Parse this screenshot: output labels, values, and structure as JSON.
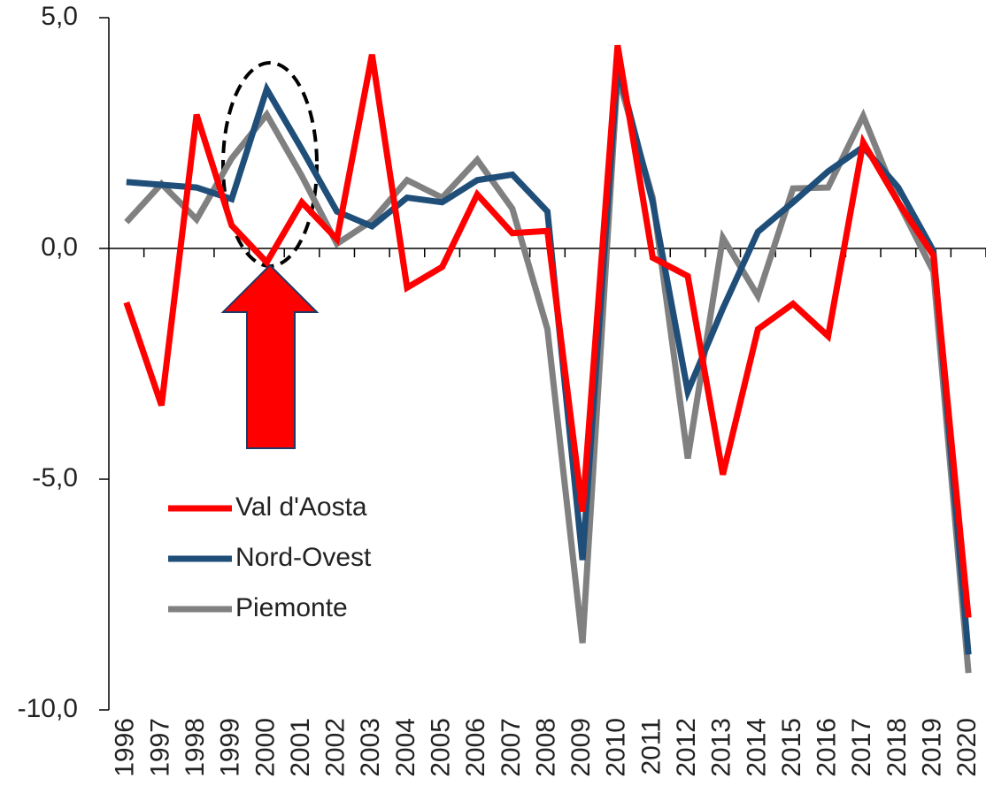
{
  "chart_data": {
    "type": "line",
    "categories": [
      "1996",
      "1997",
      "1998",
      "1999",
      "2000",
      "2001",
      "2002",
      "2003",
      "2004",
      "2005",
      "2006",
      "2007",
      "2008",
      "2009",
      "2010",
      "2011",
      "2012",
      "2013",
      "2014",
      "2015",
      "2016",
      "2017",
      "2018",
      "2019",
      "2020"
    ],
    "series": [
      {
        "name": "Val d'Aosta",
        "color": "#ff0000",
        "values": [
          -1.17,
          -3.4,
          2.9,
          0.5,
          -0.3,
          1.0,
          0.2,
          4.2,
          -0.85,
          -0.4,
          1.17,
          0.33,
          0.38,
          -5.7,
          4.4,
          -0.2,
          -0.6,
          -4.9,
          -1.75,
          -1.2,
          -1.9,
          2.3,
          1.0,
          -0.15,
          -8.0
        ]
      },
      {
        "name": "Nord-Ovest",
        "color": "#1f4e79",
        "values": [
          1.44,
          1.38,
          1.32,
          1.07,
          3.45,
          2.15,
          0.8,
          0.48,
          1.1,
          1.0,
          1.48,
          1.6,
          0.8,
          -6.75,
          3.95,
          1.0,
          -3.1,
          -1.3,
          0.36,
          1.0,
          1.67,
          2.2,
          1.32,
          -0.05,
          -8.8
        ]
      },
      {
        "name": "Piemonte",
        "color": "#808080",
        "values": [
          0.57,
          1.4,
          0.63,
          1.95,
          2.9,
          1.57,
          0.1,
          0.6,
          1.48,
          1.1,
          1.92,
          0.86,
          -1.75,
          -8.55,
          3.75,
          1.1,
          -4.55,
          0.23,
          -1.03,
          1.3,
          1.32,
          2.87,
          1.0,
          -0.5,
          -9.2
        ]
      }
    ],
    "ylim": [
      -10,
      5
    ],
    "yticks": [
      {
        "value": -10,
        "label": "-10,0"
      },
      {
        "value": -5,
        "label": "-5,0"
      },
      {
        "value": 0,
        "label": "0,0"
      },
      {
        "value": 5,
        "label": "5,0"
      }
    ]
  }
}
